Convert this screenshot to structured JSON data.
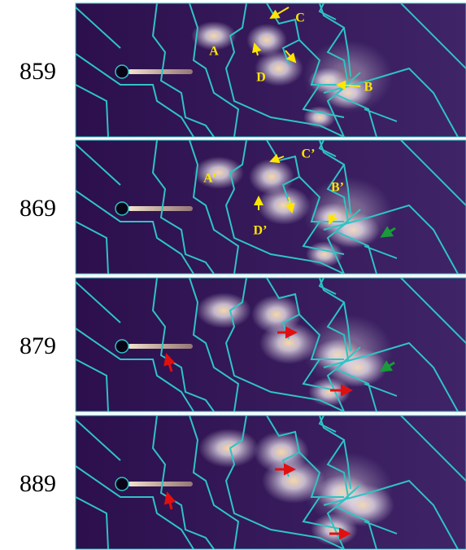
{
  "panels": [
    {
      "label": "859",
      "annotations": [
        "A",
        "B",
        "C",
        "D"
      ]
    },
    {
      "label": "869",
      "annotations": [
        "A’",
        "B’",
        "C’",
        "D’"
      ]
    },
    {
      "label": "879",
      "annotations": []
    },
    {
      "label": "889",
      "annotations": []
    }
  ]
}
